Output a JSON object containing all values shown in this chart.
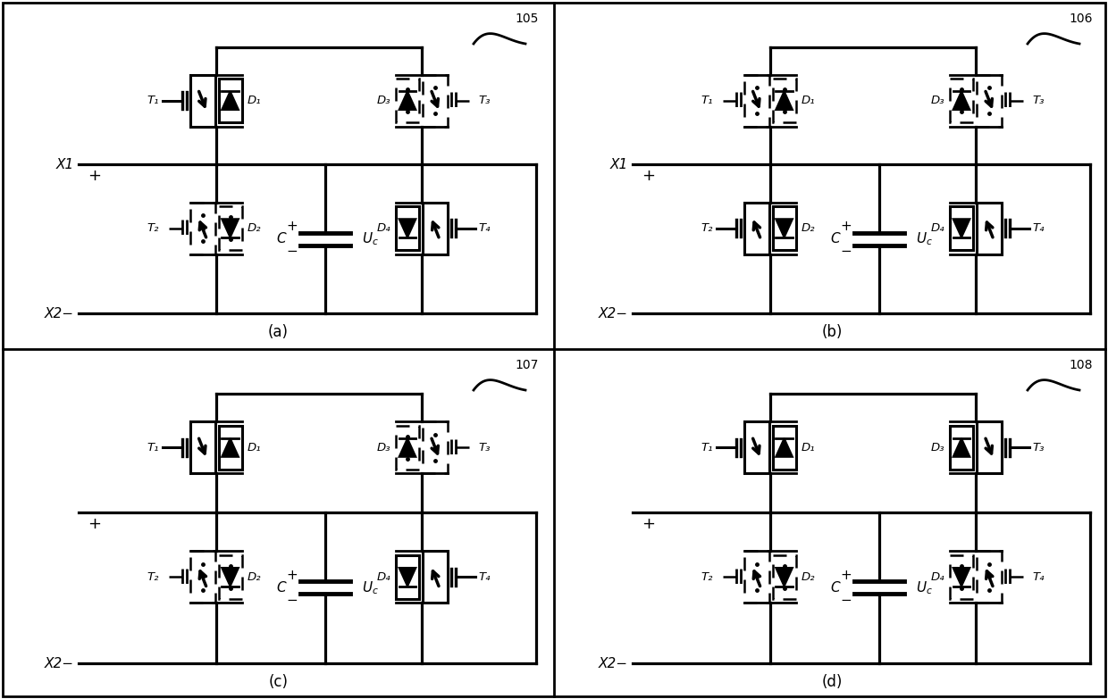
{
  "bg_color": "#ffffff",
  "panels": [
    {
      "label": "(a)",
      "number": "105",
      "T1_dash": false,
      "D1_dash": false,
      "T2_dash": true,
      "D2_dash": true,
      "T3_dash": true,
      "D3_dash": true,
      "T4_dash": false,
      "D4_dash": false,
      "show_X1": true,
      "show_X2": true
    },
    {
      "label": "(b)",
      "number": "106",
      "T1_dash": true,
      "D1_dash": true,
      "T2_dash": false,
      "D2_dash": false,
      "T3_dash": true,
      "D3_dash": true,
      "T4_dash": false,
      "D4_dash": false,
      "show_X1": true,
      "show_X2": true
    },
    {
      "label": "(c)",
      "number": "107",
      "T1_dash": false,
      "D1_dash": false,
      "T2_dash": true,
      "D2_dash": true,
      "T3_dash": true,
      "D3_dash": true,
      "T4_dash": false,
      "D4_dash": false,
      "show_X1": false,
      "show_X2": true
    },
    {
      "label": "(d)",
      "number": "108",
      "T1_dash": false,
      "D1_dash": false,
      "T2_dash": true,
      "D2_dash": true,
      "T3_dash": false,
      "D3_dash": false,
      "T4_dash": true,
      "D4_dash": true,
      "show_X1": false,
      "show_X2": true
    }
  ]
}
